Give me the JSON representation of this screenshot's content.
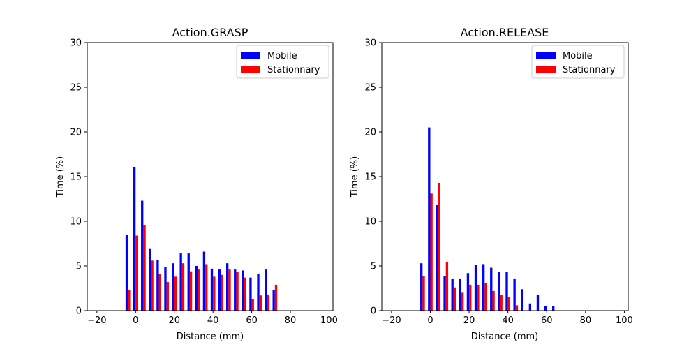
{
  "figure": {
    "background": "#ffffff"
  },
  "chart_data": [
    {
      "type": "bar",
      "title": "Action.GRASP",
      "xlabel": "Distance (mm)",
      "ylabel": "Time (%)",
      "xlim": [
        -25,
        102
      ],
      "ylim": [
        0,
        30
      ],
      "xticks": [
        -20,
        0,
        20,
        40,
        60,
        80,
        100
      ],
      "yticks": [
        0,
        5,
        10,
        15,
        20,
        25,
        30
      ],
      "grid": false,
      "legend_position": "top-right",
      "bar_width": 1.2,
      "x": [
        -4,
        0,
        4,
        8,
        12,
        16,
        20,
        24,
        28,
        32,
        36,
        40,
        44,
        48,
        52,
        56,
        60,
        64,
        68,
        72
      ],
      "series": [
        {
          "name": "Mobile",
          "color": "#0000ff",
          "offset": -0.6,
          "values": [
            8.5,
            16.1,
            12.3,
            6.9,
            5.7,
            4.9,
            5.3,
            6.4,
            6.4,
            5.0,
            6.6,
            4.7,
            4.6,
            5.3,
            4.6,
            4.5,
            3.7,
            4.1,
            4.6,
            2.3
          ]
        },
        {
          "name": "Stationnary",
          "color": "#ff0000",
          "offset": 0.6,
          "values": [
            2.3,
            8.4,
            9.6,
            5.6,
            4.1,
            3.2,
            3.8,
            5.3,
            4.4,
            4.6,
            5.2,
            3.8,
            4.0,
            4.6,
            4.3,
            3.7,
            1.3,
            1.7,
            1.8,
            2.9
          ]
        }
      ]
    },
    {
      "type": "bar",
      "title": "Action.RELEASE",
      "xlabel": "Distance (mm)",
      "ylabel": "Time (%)",
      "xlim": [
        -25,
        102
      ],
      "ylim": [
        0,
        30
      ],
      "xticks": [
        -20,
        0,
        20,
        40,
        60,
        80,
        100
      ],
      "yticks": [
        0,
        5,
        10,
        15,
        20,
        25,
        30
      ],
      "grid": false,
      "legend_position": "top-right",
      "bar_width": 1.2,
      "x": [
        -4,
        0,
        4,
        8,
        12,
        16,
        20,
        24,
        28,
        32,
        36,
        40,
        44,
        48,
        52,
        56,
        60,
        64
      ],
      "series": [
        {
          "name": "Mobile",
          "color": "#0000ff",
          "offset": -0.6,
          "values": [
            5.3,
            20.5,
            11.8,
            3.9,
            3.6,
            3.6,
            4.2,
            5.1,
            5.2,
            4.8,
            4.3,
            4.3,
            3.6,
            2.4,
            0.8,
            1.8,
            0.5,
            0.5
          ]
        },
        {
          "name": "Stationnary",
          "color": "#ff0000",
          "offset": 0.6,
          "values": [
            3.9,
            13.1,
            14.3,
            5.4,
            2.6,
            2.0,
            2.9,
            2.9,
            3.1,
            2.2,
            1.8,
            1.5,
            0.6,
            0,
            0,
            0,
            0,
            0
          ]
        }
      ]
    }
  ]
}
